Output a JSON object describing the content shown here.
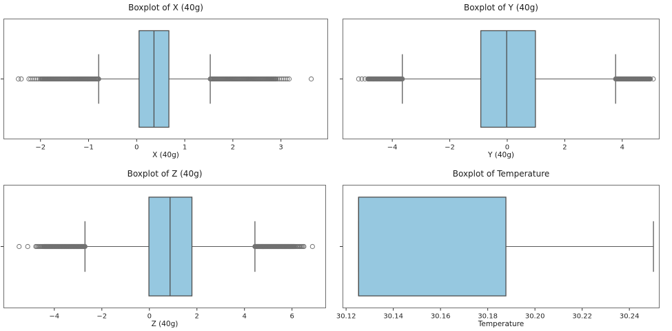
{
  "figure": {
    "background": "#ffffff"
  },
  "colors": {
    "box_fill": "#96C8E0",
    "box_edge": "#4d4d4d",
    "whisker_line": "#5a5a5a",
    "outlier_circle": "#717171",
    "spine": "#6e6e6e",
    "tick_mark": "#333333",
    "tick_text": "#262626",
    "title_text": "#1a1a1a"
  },
  "chart_data": [
    {
      "type": "boxplot-horizontal",
      "title": "Boxplot of X (40g)",
      "xlabel": "X (40g)",
      "xlim": [
        -2.77,
        3.98
      ],
      "grid": false,
      "tick_values": [
        -2,
        -1,
        0,
        1,
        2,
        3
      ],
      "tick_labels": [
        "−2",
        "−1",
        "0",
        "1",
        "2",
        "3"
      ],
      "q1": 0.05,
      "median": 0.36,
      "q3": 0.67,
      "whisker_low": -0.79,
      "whisker_high": 1.53,
      "outlier_clusters": [
        {
          "from": -2.24,
          "to": -2.0,
          "count": 7
        },
        {
          "from": -1.98,
          "to": -0.79,
          "count": 85
        },
        {
          "from": 1.53,
          "to": 2.9,
          "count": 95
        },
        {
          "from": 2.93,
          "to": 3.17,
          "count": 7
        }
      ],
      "outlier_points": [
        -2.46,
        -2.4,
        3.63
      ]
    },
    {
      "type": "boxplot-horizontal",
      "title": "Boxplot of Y (40g)",
      "xlabel": "Y (40g)",
      "xlim": [
        -5.73,
        5.3
      ],
      "grid": false,
      "tick_values": [
        -4,
        -2,
        0,
        2,
        4
      ],
      "tick_labels": [
        "−4",
        "−2",
        "0",
        "2",
        "4"
      ],
      "q1": -0.92,
      "median": -0.02,
      "q3": 0.98,
      "whisker_low": -3.65,
      "whisker_high": 3.77,
      "outlier_clusters": [
        {
          "from": -4.85,
          "to": -3.65,
          "count": 80
        },
        {
          "from": 3.77,
          "to": 4.98,
          "count": 85
        }
      ],
      "outlier_points": [
        -5.17,
        -5.06,
        -4.95,
        5.08
      ]
    },
    {
      "type": "boxplot-horizontal",
      "title": "Boxplot of Z (40g)",
      "xlabel": "Z (40g)",
      "xlim": [
        -6.14,
        7.43
      ],
      "grid": false,
      "tick_values": [
        -4,
        -2,
        0,
        2,
        4,
        6
      ],
      "tick_labels": [
        "−4",
        "−2",
        "0",
        "2",
        "4",
        "6"
      ],
      "q1": -0.02,
      "median": 0.87,
      "q3": 1.79,
      "whisker_low": -2.71,
      "whisker_high": 4.44,
      "outlier_clusters": [
        {
          "from": -4.78,
          "to": -4.5,
          "count": 7
        },
        {
          "from": -4.45,
          "to": -2.71,
          "count": 85
        },
        {
          "from": 4.44,
          "to": 6.1,
          "count": 90
        },
        {
          "from": 6.13,
          "to": 6.5,
          "count": 9
        }
      ],
      "outlier_points": [
        -5.48,
        -5.12,
        6.86
      ]
    },
    {
      "type": "boxplot-horizontal",
      "title": "Boxplot of Temperature",
      "xlabel": "Temperature",
      "xlim": [
        30.1185,
        30.2528
      ],
      "grid": false,
      "tick_values": [
        30.12,
        30.14,
        30.16,
        30.18,
        30.2,
        30.22,
        30.24
      ],
      "tick_labels": [
        "30.12",
        "30.14",
        "30.16",
        "30.18",
        "30.20",
        "30.22",
        "30.24"
      ],
      "q1": 30.1253,
      "median": 30.1253,
      "q3": 30.1877,
      "whisker_low": 30.1253,
      "whisker_high": 30.2502,
      "outlier_clusters": [],
      "outlier_points": []
    }
  ]
}
